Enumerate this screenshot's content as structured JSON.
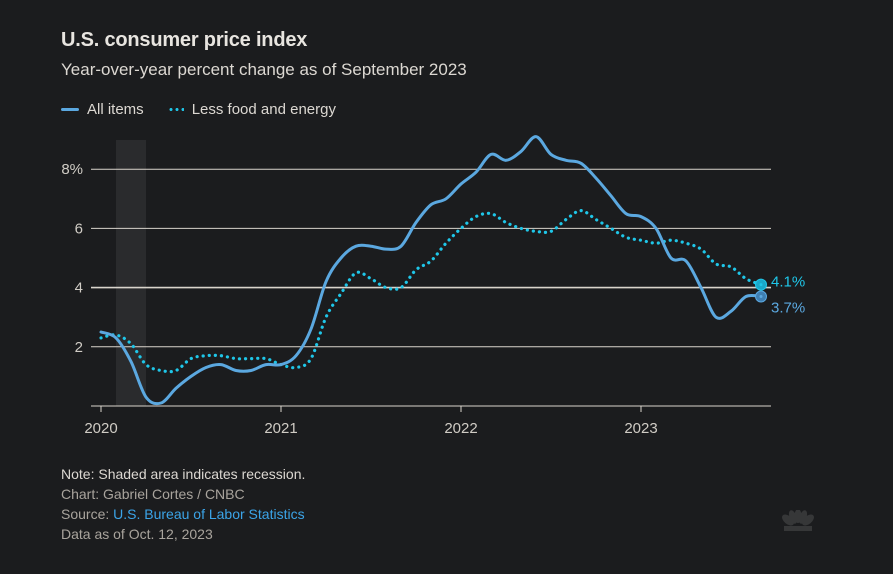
{
  "header": {
    "title": "U.S. consumer price index",
    "subtitle": "Year-over-year percent change as of September 2023"
  },
  "legend": [
    {
      "label": "All items",
      "style": "solid",
      "color": "#5ba8e0"
    },
    {
      "label": "Less food and energy",
      "style": "dotted",
      "color": "#1fc6e8"
    }
  ],
  "chart_data": {
    "type": "line",
    "title": "U.S. consumer price index",
    "subtitle": "Year-over-year percent change as of September 2023",
    "xlabel": "",
    "ylabel": "",
    "x_start": "2020-01",
    "x_end": "2023-09",
    "x_ticks": [
      "2020",
      "2021",
      "2022",
      "2023"
    ],
    "y_ticks": [
      "2",
      "4",
      "6",
      "8%"
    ],
    "y_tick_values": [
      2,
      4,
      6,
      8
    ],
    "ylim": [
      0,
      9.2
    ],
    "grid": true,
    "legend_position": "top-left",
    "recession": {
      "start": "2020-02",
      "end": "2020-04",
      "label": "Shaded area indicates recession."
    },
    "months": [
      "2020-01",
      "2020-02",
      "2020-03",
      "2020-04",
      "2020-05",
      "2020-06",
      "2020-07",
      "2020-08",
      "2020-09",
      "2020-10",
      "2020-11",
      "2020-12",
      "2021-01",
      "2021-02",
      "2021-03",
      "2021-04",
      "2021-05",
      "2021-06",
      "2021-07",
      "2021-08",
      "2021-09",
      "2021-10",
      "2021-11",
      "2021-12",
      "2022-01",
      "2022-02",
      "2022-03",
      "2022-04",
      "2022-05",
      "2022-06",
      "2022-07",
      "2022-08",
      "2022-09",
      "2022-10",
      "2022-11",
      "2022-12",
      "2023-01",
      "2023-02",
      "2023-03",
      "2023-04",
      "2023-05",
      "2023-06",
      "2023-07",
      "2023-08",
      "2023-09"
    ],
    "series": [
      {
        "name": "All items",
        "color": "#5ba8e0",
        "style": "solid",
        "values": [
          2.5,
          2.3,
          1.5,
          0.3,
          0.1,
          0.6,
          1.0,
          1.3,
          1.4,
          1.2,
          1.2,
          1.4,
          1.4,
          1.7,
          2.6,
          4.2,
          5.0,
          5.4,
          5.4,
          5.3,
          5.4,
          6.2,
          6.8,
          7.0,
          7.5,
          7.9,
          8.5,
          8.3,
          8.6,
          9.1,
          8.5,
          8.3,
          8.2,
          7.7,
          7.1,
          6.5,
          6.4,
          6.0,
          5.0,
          4.9,
          4.0,
          3.0,
          3.2,
          3.7,
          3.7
        ],
        "end_label": "3.7%"
      },
      {
        "name": "Less food and energy",
        "color": "#1fc6e8",
        "style": "dotted",
        "values": [
          2.3,
          2.4,
          2.1,
          1.4,
          1.2,
          1.2,
          1.6,
          1.7,
          1.7,
          1.6,
          1.6,
          1.6,
          1.4,
          1.3,
          1.6,
          3.0,
          3.8,
          4.5,
          4.3,
          4.0,
          4.0,
          4.6,
          4.9,
          5.5,
          6.0,
          6.4,
          6.5,
          6.2,
          6.0,
          5.9,
          5.9,
          6.3,
          6.6,
          6.3,
          6.0,
          5.7,
          5.6,
          5.5,
          5.6,
          5.5,
          5.3,
          4.8,
          4.7,
          4.3,
          4.1
        ],
        "end_label": "4.1%"
      }
    ]
  },
  "footer": {
    "note": "Note: Shaded area indicates recession.",
    "credit": "Chart: Gabriel Cortes / CNBC",
    "source_prefix": "Source: ",
    "source_link": "U.S. Bureau of Labor Statistics",
    "data_as_of": "Data as of Oct. 12, 2023"
  },
  "logo": {
    "icon": "cnbc-peacock-icon"
  }
}
